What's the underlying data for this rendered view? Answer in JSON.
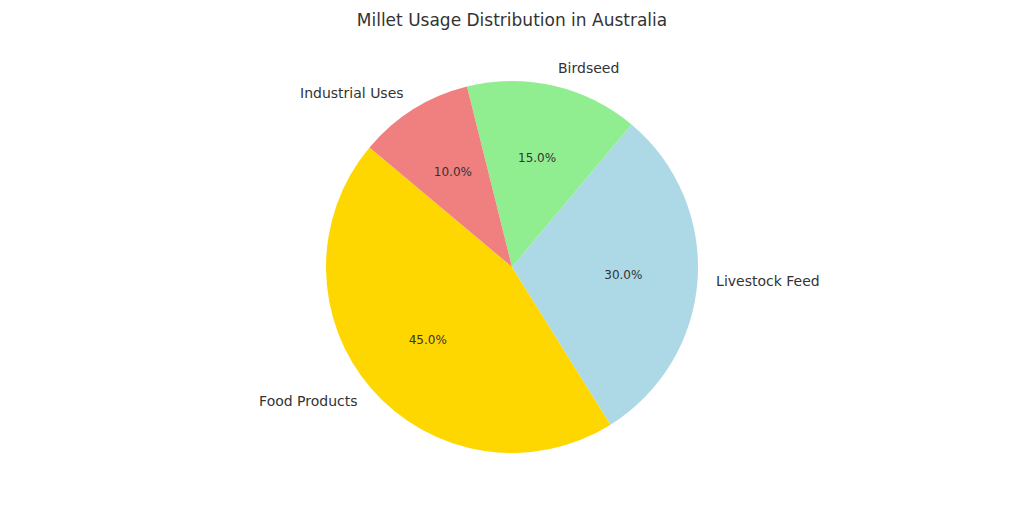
{
  "chart_data": {
    "type": "pie",
    "title": "Millet Usage Distribution in Australia",
    "categories": [
      "Food Products",
      "Livestock Feed",
      "Birdseed",
      "Industrial Uses"
    ],
    "values": [
      45,
      30,
      15,
      10
    ],
    "value_labels": [
      "45.0%",
      "30.0%",
      "15.0%",
      "10.0%"
    ],
    "colors": [
      "#ffd700",
      "#add8e6",
      "#90ee90",
      "#f08080"
    ],
    "data_labels": true
  }
}
